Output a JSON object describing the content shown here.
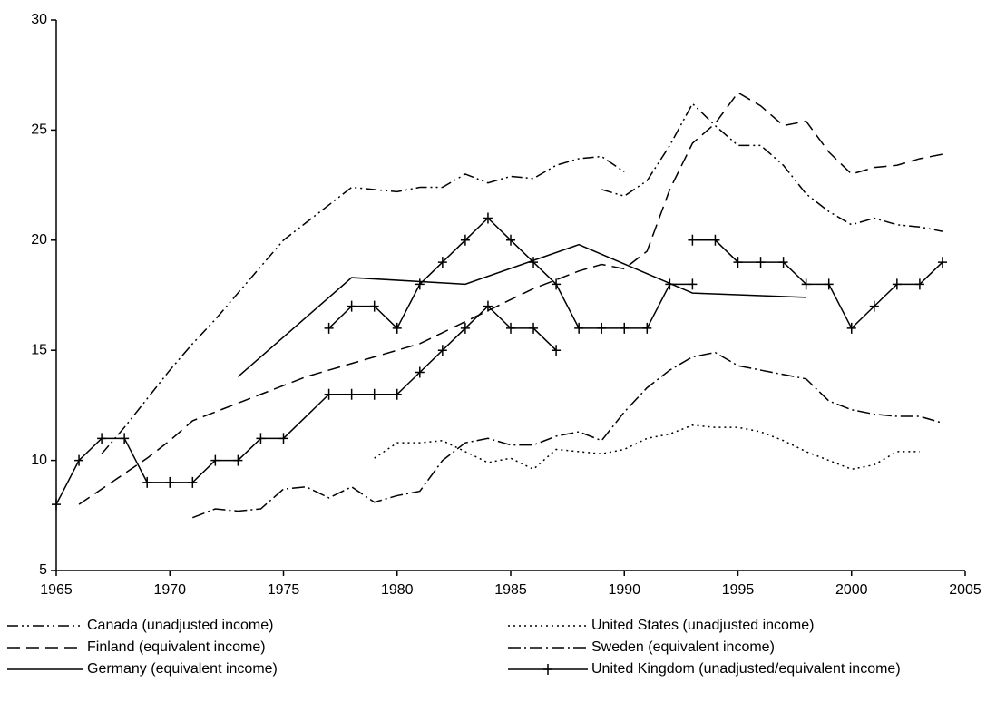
{
  "chart_data": {
    "type": "line",
    "xlim": [
      1965,
      2005
    ],
    "xticks": [
      1965,
      1970,
      1975,
      1980,
      1985,
      1990,
      1995,
      2000,
      2005
    ],
    "ylim": [
      5,
      30
    ],
    "yticks": [
      5,
      10,
      15,
      20,
      25,
      30
    ],
    "grid": false,
    "legend": "bottom",
    "series": [
      {
        "name": "Canada (unadjusted income)",
        "color": "#000000",
        "dash": "12,4,2,4,2,4",
        "x": [
          1967,
          1968,
          1969,
          1970,
          1971,
          1972,
          1973,
          1974,
          1975,
          1976,
          1977,
          1978,
          1979,
          1980,
          1981,
          1982,
          1983,
          1984,
          1985,
          1986,
          1987,
          1988,
          1989,
          1990,
          null,
          1989,
          1990,
          1991,
          1992,
          1993,
          1994,
          1995,
          1996,
          1997,
          1998,
          1999,
          2000,
          2001,
          2002,
          2003,
          2004
        ],
        "values": [
          10.3,
          11.5,
          12.8,
          14.1,
          15.3,
          16.4,
          17.6,
          18.8,
          20.0,
          20.8,
          21.6,
          22.4,
          22.3,
          22.2,
          22.4,
          22.4,
          23.0,
          22.6,
          22.9,
          22.8,
          23.4,
          23.7,
          23.8,
          23.1,
          null,
          22.3,
          22.0,
          22.7,
          24.3,
          26.2,
          25.2,
          24.3,
          24.3,
          23.4,
          22.1,
          21.3,
          20.7,
          21.0,
          20.7,
          20.6,
          20.4
        ]
      },
      {
        "name": "United States (unadjusted income)",
        "color": "#000000",
        "dash": "2,4",
        "x": [
          1979,
          1980,
          1981,
          1982,
          1983,
          1984,
          1985,
          1986,
          1987,
          1988,
          1989,
          1990,
          1991,
          1992,
          1993,
          1994,
          1995,
          1996,
          1997,
          1998,
          1999,
          2000,
          2001,
          2002,
          2003
        ],
        "values": [
          10.1,
          10.8,
          10.8,
          10.9,
          10.4,
          9.9,
          10.1,
          9.6,
          10.5,
          10.4,
          10.3,
          10.5,
          11.0,
          11.2,
          11.6,
          11.5,
          11.5,
          11.3,
          10.9,
          10.4,
          10.0,
          9.6,
          9.8,
          10.4,
          10.4
        ]
      },
      {
        "name": "Finland (equivalent income)",
        "color": "#000000",
        "dash": "14,7",
        "x": [
          1966,
          1967,
          1968,
          1969,
          1970,
          1971,
          1972,
          1973,
          1974,
          1975,
          1976,
          1977,
          1978,
          1979,
          1980,
          1981,
          1982,
          1983,
          1984,
          1985,
          1986,
          1987,
          1988,
          1989,
          1990,
          1991,
          1992,
          1993,
          1994,
          1995,
          1996,
          1997,
          1998,
          1999,
          2000,
          2001,
          2002,
          2003,
          2004
        ],
        "values": [
          8.0,
          8.7,
          9.4,
          10.1,
          10.9,
          11.8,
          12.2,
          12.6,
          13.0,
          13.4,
          13.8,
          14.1,
          14.4,
          14.7,
          15.0,
          15.3,
          15.8,
          16.3,
          16.8,
          17.3,
          17.8,
          18.2,
          18.6,
          18.9,
          18.7,
          19.5,
          22.3,
          24.4,
          25.3,
          26.7,
          26.1,
          25.2,
          25.4,
          24.0,
          23.0,
          23.3,
          23.4,
          23.7,
          23.9
        ]
      },
      {
        "name": "Sweden (equivalent income)",
        "color": "#000000",
        "dash": "14,4,2,4",
        "x": [
          1971,
          1972,
          1973,
          1974,
          1975,
          1976,
          1977,
          1978,
          1979,
          1980,
          1981,
          1982,
          1983,
          1984,
          1985,
          1986,
          1987,
          1988,
          1989,
          1990,
          1991,
          1992,
          1993,
          1994,
          1995,
          1996,
          1997,
          1998,
          1999,
          2000,
          2001,
          2002,
          2003,
          2004
        ],
        "values": [
          7.4,
          7.8,
          7.7,
          7.8,
          8.7,
          8.8,
          8.3,
          8.8,
          8.1,
          8.4,
          8.6,
          10.0,
          10.8,
          11.0,
          10.7,
          10.7,
          11.1,
          11.3,
          10.9,
          12.2,
          13.3,
          14.1,
          14.7,
          14.9,
          14.3,
          14.1,
          13.9,
          13.7,
          12.7,
          12.3,
          12.1,
          12.0,
          12.0,
          11.7
        ]
      },
      {
        "name": "Germany (equivalent income)",
        "color": "#000000",
        "dash": "none",
        "x": [
          1973,
          1978,
          1983,
          1988,
          1993,
          1998
        ],
        "values": [
          13.8,
          18.3,
          18.0,
          19.8,
          17.6,
          17.4
        ]
      },
      {
        "name": "United Kingdom (unadjusted/equivalent income)",
        "color": "#000000",
        "dash": "none",
        "marker": "plus",
        "x": [
          1965,
          1966,
          1967,
          1968,
          1969,
          1970,
          1971,
          1972,
          1973,
          1974,
          1975,
          1977,
          1978,
          1979,
          1980,
          1981,
          1982,
          1983,
          1984,
          1985,
          1986,
          1987,
          null,
          1977,
          1978,
          1979,
          1980,
          1981,
          1982,
          1983,
          1984,
          1985,
          1986,
          1987,
          1988,
          1989,
          1990,
          1991,
          1992,
          1993,
          null,
          1993,
          1994,
          1995,
          1996,
          1997,
          1998,
          1999,
          2000,
          2001,
          2002,
          2003,
          2004
        ],
        "values": [
          8,
          10,
          11,
          11,
          9,
          9,
          9,
          10,
          10,
          11,
          11,
          13,
          13,
          13,
          13,
          14,
          15,
          16,
          17,
          16,
          16,
          15,
          null,
          16,
          17,
          17,
          16,
          18,
          19,
          20,
          21,
          20,
          19,
          18,
          16,
          16,
          16,
          16,
          18,
          18,
          null,
          20,
          20,
          19,
          19,
          19,
          18,
          18,
          16,
          17,
          18,
          18,
          19
        ]
      }
    ]
  }
}
